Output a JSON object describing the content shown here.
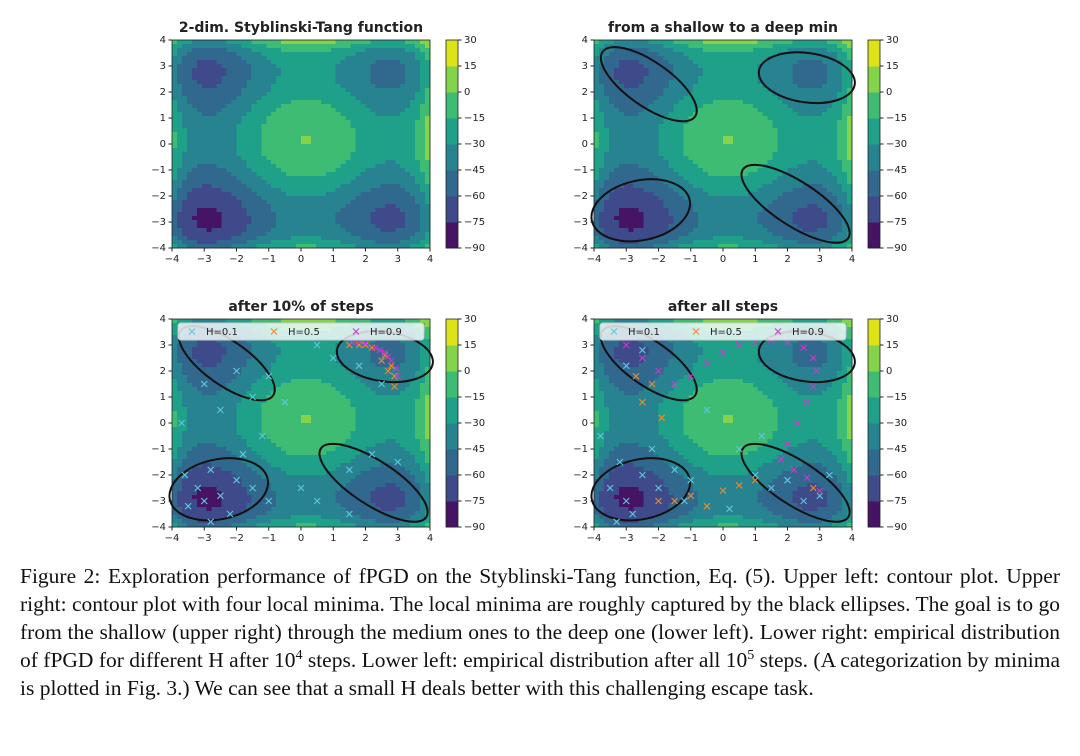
{
  "chart_data": [
    {
      "type": "contour",
      "title": "2-dim. Styblinski-Tang function",
      "xlim": [
        -4,
        4
      ],
      "ylim": [
        -4,
        4
      ],
      "xticks": [
        {
          "value": -4,
          "label": "−4"
        },
        {
          "value": -3,
          "label": "−3"
        },
        {
          "value": -2,
          "label": "−2"
        },
        {
          "value": -1,
          "label": "−1"
        },
        0,
        1,
        2,
        3,
        4
      ],
      "yticks": [
        {
          "value": -4,
          "label": "−4"
        },
        {
          "value": -3,
          "label": "−3"
        },
        {
          "value": -2,
          "label": "−2"
        },
        {
          "value": -1,
          "label": "−1"
        },
        0,
        1,
        2,
        3,
        4
      ],
      "colorbar_lim": [
        -90,
        30
      ],
      "colorbar_ticks": [
        {
          "value": -90,
          "label": "−90"
        },
        {
          "value": -75,
          "label": "−75"
        },
        {
          "value": -60,
          "label": "−60"
        },
        {
          "value": -45,
          "label": "−45"
        },
        {
          "value": -30,
          "label": "−30"
        },
        {
          "value": -15,
          "label": "−15"
        },
        0,
        15,
        30
      ],
      "colormap": [
        "#471365",
        "#3e4a89",
        "#31688e",
        "#26838f",
        "#1fa088",
        "#3fbc73",
        "#84d44b",
        "#dde318"
      ]
    },
    {
      "type": "contour",
      "title": "from a shallow to a deep min",
      "xlim": [
        -4,
        4
      ],
      "ylim": [
        -4,
        4
      ],
      "xticks": [
        {
          "value": -4,
          "label": "−4"
        },
        {
          "value": -3,
          "label": "−3"
        },
        {
          "value": -2,
          "label": "−2"
        },
        {
          "value": -1,
          "label": "−1"
        },
        0,
        1,
        2,
        3,
        4
      ],
      "yticks": [
        {
          "value": -4,
          "label": "−4"
        },
        {
          "value": -3,
          "label": "−3"
        },
        {
          "value": -2,
          "label": "−2"
        },
        {
          "value": -1,
          "label": "−1"
        },
        0,
        1,
        2,
        3,
        4
      ],
      "colorbar_lim": [
        -90,
        30
      ],
      "colorbar_ticks": [
        {
          "value": -90,
          "label": "−90"
        },
        {
          "value": -75,
          "label": "−75"
        },
        {
          "value": -60,
          "label": "−60"
        },
        {
          "value": -45,
          "label": "−45"
        },
        {
          "value": -30,
          "label": "−30"
        },
        {
          "value": -15,
          "label": "−15"
        },
        0,
        15,
        30
      ],
      "colormap": [
        "#471365",
        "#3e4a89",
        "#31688e",
        "#26838f",
        "#1fa088",
        "#3fbc73",
        "#84d44b",
        "#dde318"
      ]
    },
    {
      "type": "scatter",
      "title": "after 10% of steps",
      "xlim": [
        -4,
        4
      ],
      "ylim": [
        -4,
        4
      ],
      "xticks": [
        {
          "value": -4,
          "label": "−4"
        },
        {
          "value": -3,
          "label": "−3"
        },
        {
          "value": -2,
          "label": "−2"
        },
        {
          "value": -1,
          "label": "−1"
        },
        0,
        1,
        2,
        3,
        4
      ],
      "yticks": [
        {
          "value": -4,
          "label": "−4"
        },
        {
          "value": -3,
          "label": "−3"
        },
        {
          "value": -2,
          "label": "−2"
        },
        {
          "value": -1,
          "label": "−1"
        },
        0,
        1,
        2,
        3,
        4
      ],
      "colorbar_lim": [
        -90,
        30
      ],
      "colorbar_ticks": [
        {
          "value": -90,
          "label": "−90"
        },
        {
          "value": -75,
          "label": "−75"
        },
        {
          "value": -60,
          "label": "−60"
        },
        {
          "value": -45,
          "label": "−45"
        },
        {
          "value": -30,
          "label": "−30"
        },
        {
          "value": -15,
          "label": "−15"
        },
        0,
        15,
        30
      ],
      "colormap": [
        "#471365",
        "#3e4a89",
        "#31688e",
        "#26838f",
        "#1fa088",
        "#3fbc73",
        "#84d44b",
        "#dde318"
      ],
      "legend": "upper center",
      "series": [
        {
          "name": "H=0.1",
          "color": "#5fc8dc",
          "x": [
            -3,
            -2.5,
            -3.2,
            -2,
            -2.8,
            -1.5,
            -1,
            -3.5,
            -2.2,
            -1.8,
            -2.5,
            -3,
            -1.5,
            -2,
            -1,
            -0.5,
            1,
            0.5,
            0,
            0.5,
            1.5,
            2.2,
            3,
            1.5,
            -3.7,
            -1.2,
            2.5,
            -2.8,
            -3.6,
            1.8
          ],
          "y": [
            -3,
            -2.8,
            -2.5,
            -2.2,
            -1.8,
            -2.5,
            -3,
            -3.2,
            -3.5,
            -1.2,
            0.5,
            1.5,
            1,
            2,
            1.8,
            0.8,
            2.5,
            3,
            -2.5,
            -3,
            -1.8,
            -1.2,
            -1.5,
            -3.5,
            0,
            -0.5,
            1.5,
            -3.8,
            -2,
            2.2
          ]
        },
        {
          "name": "H=0.5",
          "color": "#f08a2c",
          "x": [
            1.5,
            1.8,
            2.2,
            2.6,
            2.8,
            2.9,
            2.9,
            2.7,
            2,
            2.5
          ],
          "y": [
            3,
            3,
            2.9,
            2.6,
            2.2,
            1.8,
            1.4,
            2,
            3,
            2.4
          ]
        },
        {
          "name": "H=0.9",
          "color": "#c83cc8",
          "x": [
            1.6,
            2,
            2.3,
            2.6,
            2.8,
            2.95,
            3,
            1.8,
            2.45,
            2.7
          ],
          "y": [
            3.1,
            3.05,
            2.9,
            2.7,
            2.4,
            2.1,
            1.8,
            3.1,
            2.8,
            2.55
          ]
        }
      ]
    },
    {
      "type": "scatter",
      "title": "after all steps",
      "xlim": [
        -4,
        4
      ],
      "ylim": [
        -4,
        4
      ],
      "xticks": [
        {
          "value": -4,
          "label": "−4"
        },
        {
          "value": -3,
          "label": "−3"
        },
        {
          "value": -2,
          "label": "−2"
        },
        {
          "value": -1,
          "label": "−1"
        },
        0,
        1,
        2,
        3,
        4
      ],
      "yticks": [
        {
          "value": -4,
          "label": "−4"
        },
        {
          "value": -3,
          "label": "−3"
        },
        {
          "value": -2,
          "label": "−2"
        },
        {
          "value": -1,
          "label": "−1"
        },
        0,
        1,
        2,
        3,
        4
      ],
      "colorbar_lim": [
        -90,
        30
      ],
      "colorbar_ticks": [
        {
          "value": -90,
          "label": "−90"
        },
        {
          "value": -75,
          "label": "−75"
        },
        {
          "value": -60,
          "label": "−60"
        },
        {
          "value": -45,
          "label": "−45"
        },
        {
          "value": -30,
          "label": "−30"
        },
        {
          "value": -15,
          "label": "−15"
        },
        0,
        15,
        30
      ],
      "colormap": [
        "#471365",
        "#3e4a89",
        "#31688e",
        "#26838f",
        "#1fa088",
        "#3fbc73",
        "#84d44b",
        "#dde318"
      ],
      "legend": "upper center",
      "series": [
        {
          "name": "H=0.1",
          "color": "#5fc8dc",
          "x": [
            -3,
            -2.5,
            -3.2,
            -2,
            -1.5,
            -3.5,
            -2.8,
            -1.2,
            -3.8,
            -2.5,
            -3,
            -1.5,
            -0.5,
            0.5,
            1,
            1.5,
            2,
            2.5,
            3,
            3.3,
            1.2,
            -2.2,
            -1,
            -3.3,
            0.2
          ],
          "y": [
            -3,
            -2,
            -1.5,
            -2.5,
            -1.8,
            -2.5,
            -3.5,
            -3,
            -0.5,
            2.8,
            2.2,
            1.5,
            0.5,
            -1,
            -2,
            -2.5,
            -2.2,
            -3,
            -2.8,
            -2,
            -0.5,
            -1,
            -2.2,
            -3.8,
            -3.3
          ]
        },
        {
          "name": "H=0.5",
          "color": "#f08a2c",
          "x": [
            -2,
            -1.5,
            -1,
            -0.5,
            0,
            0.5,
            1,
            -2.5,
            -2.7,
            -2.2,
            -1.9,
            2.8
          ],
          "y": [
            -3,
            -3,
            -2.8,
            -3.2,
            -2.6,
            -2.4,
            -2.2,
            0.8,
            1.8,
            1.5,
            0.2,
            -2.5
          ]
        },
        {
          "name": "H=0.9",
          "color": "#c83cc8",
          "x": [
            -3,
            -2.5,
            -2,
            -1.5,
            -1,
            -0.5,
            0,
            0.5,
            1,
            1.5,
            2,
            2.5,
            2.8,
            2.9,
            2.8,
            2.6,
            2.3,
            2,
            1.8,
            2.2,
            2.6,
            3
          ],
          "y": [
            3,
            2.5,
            2,
            1.5,
            1.8,
            2.3,
            2.7,
            3,
            3.1,
            3.2,
            3.1,
            2.9,
            2.5,
            2,
            1.4,
            0.8,
            0,
            -0.8,
            -1.4,
            -1.8,
            -2.1,
            -2.6
          ]
        }
      ]
    }
  ],
  "caption": [
    "Figure 2: Exploration performance of fPGD on the Styblinski-Tang function, Eq. (5). Upper left: contour plot. Upper right: contour plot with four local minima. The local minima are roughly captured by the black ellipses. The goal is to go from the shallow (upper right) through the medium ones to the deep one (lower left). Lower right: empirical distribution of fPGD for different H after ",
    "10",
    "4",
    " steps. Lower left: empirical distribution after all ",
    "10",
    "5",
    " steps. (A categorization by minima is plotted in Fig. 3.) We can see that a small H deals better with this challenging escape task."
  ]
}
